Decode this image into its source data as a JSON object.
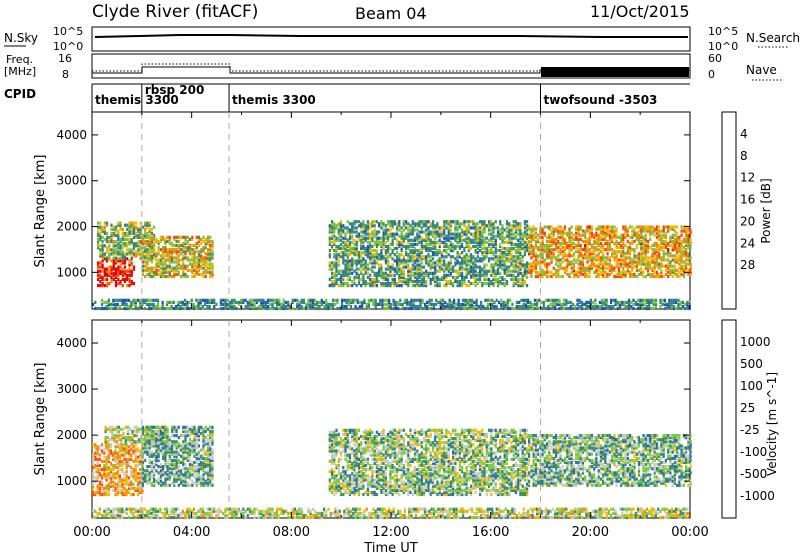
{
  "header": {
    "station": "Clyde River (fitACF)",
    "beam": "Beam 04",
    "date": "11/Oct/2015"
  },
  "top_panels": {
    "nsky": {
      "label": "N.Sky",
      "tick_top": "10^5",
      "tick_bottom": "10^0"
    },
    "nsearch": {
      "label": "N.Search",
      "tick_top": "10^5",
      "tick_bottom": "10^0"
    },
    "freq": {
      "label_line1": "Freq.",
      "label_line2": "[MHz]",
      "tick_top": "16",
      "tick_bottom": "8"
    },
    "nave": {
      "label": "Nave",
      "tick_top": "60",
      "tick_bottom": "0"
    },
    "cpid": {
      "label": "CPID",
      "segments": [
        {
          "name": "themis 3300",
          "start_h": 0.0,
          "end_h": 2.0
        },
        {
          "name": "rbsp 200",
          "start_h": 2.0,
          "end_h": 5.5
        },
        {
          "name": "themis 3300",
          "start_h": 5.5,
          "end_h": 18.0
        },
        {
          "name": "twofsound -3503",
          "start_h": 18.0,
          "end_h": 24.0
        }
      ]
    }
  },
  "chart_data": [
    {
      "type": "heatmap",
      "title": "",
      "xlabel": "Time UT",
      "ylabel": "Slant Range [km]",
      "x_ticks": [
        "00:00",
        "04:00",
        "08:00",
        "12:00",
        "16:00",
        "20:00",
        "00:00"
      ],
      "x_range_hours": [
        0,
        24
      ],
      "y_ticks": [
        "1000",
        "2000",
        "3000",
        "4000"
      ],
      "y_range_km": [
        200,
        4500
      ],
      "colorbar": {
        "label": "Power [dB]",
        "ticks": [
          "4",
          "8",
          "12",
          "16",
          "20",
          "24",
          "28"
        ],
        "range": [
          0,
          30
        ],
        "colors": [
          "#1f3cff",
          "#1f54b4",
          "#2f7f8f",
          "#3c8c64",
          "#78c040",
          "#f0b800",
          "#f08800",
          "#ff4400",
          "#e00000"
        ]
      },
      "regions": [
        {
          "t": [
            0.2,
            1.7
          ],
          "r": [
            700,
            1300
          ],
          "value": 28
        },
        {
          "t": [
            0.2,
            2.5
          ],
          "r": [
            1300,
            2100
          ],
          "value": 14
        },
        {
          "t": [
            2.0,
            4.8
          ],
          "r": [
            900,
            1800
          ],
          "value": 18
        },
        {
          "t": [
            9.5,
            17.5
          ],
          "r": [
            700,
            2100
          ],
          "value": 12
        },
        {
          "t": [
            17.5,
            24.0
          ],
          "r": [
            900,
            2000
          ],
          "value": 20
        },
        {
          "t": [
            0.0,
            24.0
          ],
          "r": [
            200,
            400
          ],
          "value": 10
        }
      ]
    },
    {
      "type": "heatmap",
      "title": "",
      "xlabel": "Time UT",
      "ylabel": "Slant Range [km]",
      "x_ticks": [
        "00:00",
        "04:00",
        "08:00",
        "12:00",
        "16:00",
        "20:00",
        "00:00"
      ],
      "x_range_hours": [
        0,
        24
      ],
      "y_ticks": [
        "1000",
        "2000",
        "3000",
        "4000"
      ],
      "y_range_km": [
        200,
        4500
      ],
      "colorbar": {
        "label": "Velocity [m s^-1]",
        "ticks": [
          "1000",
          "500",
          "100",
          "25",
          "-25",
          "-100",
          "-500",
          "-1000"
        ],
        "range": [
          -1000,
          1000
        ],
        "colors": [
          "#1a3fcc",
          "#2a6fa0",
          "#3a8a6a",
          "#7cc840",
          "#c8c8c8",
          "#f0b800",
          "#f08800",
          "#ff5000",
          "#e00000"
        ]
      },
      "regions": [
        {
          "t": [
            0.0,
            2.0
          ],
          "r": [
            700,
            1800
          ],
          "value": 300
        },
        {
          "t": [
            0.5,
            3.0
          ],
          "r": [
            1800,
            2200
          ],
          "value": 0
        },
        {
          "t": [
            2.0,
            4.8
          ],
          "r": [
            900,
            2200
          ],
          "value": -300
        },
        {
          "t": [
            9.5,
            17.5
          ],
          "r": [
            700,
            2100
          ],
          "value": -200
        },
        {
          "t": [
            17.5,
            24.0
          ],
          "r": [
            900,
            2000
          ],
          "value": -300
        },
        {
          "t": [
            0.0,
            24.0
          ],
          "r": [
            200,
            400
          ],
          "value": -60
        }
      ]
    }
  ]
}
